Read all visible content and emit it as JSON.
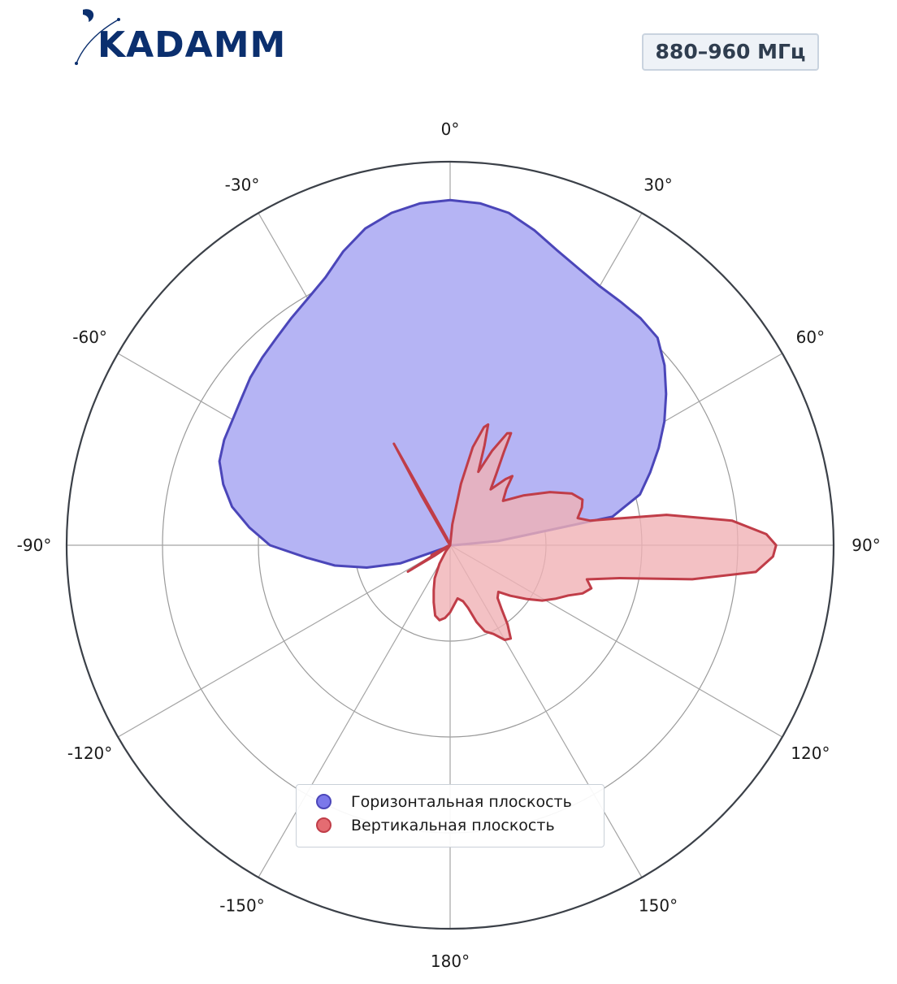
{
  "logo": {
    "text": "KADAMM",
    "color": "#0b2f6e"
  },
  "badge": {
    "text": "880–960 МГц"
  },
  "chart_data": {
    "type": "polar",
    "angular_direction": "clockwise",
    "zero_location": "top",
    "radial_range": [
      0,
      4
    ],
    "radial_gridlines": [
      1,
      2,
      3,
      4
    ],
    "grid": true,
    "angle_tick_labels": [
      {
        "angle": 0,
        "label": "0°"
      },
      {
        "angle": 30,
        "label": "30°"
      },
      {
        "angle": 60,
        "label": "60°"
      },
      {
        "angle": 90,
        "label": "90°"
      },
      {
        "angle": 120,
        "label": "120°"
      },
      {
        "angle": 150,
        "label": "150°"
      },
      {
        "angle": 180,
        "label": "180°"
      },
      {
        "angle": -150,
        "label": "-150°"
      },
      {
        "angle": -120,
        "label": "-120°"
      },
      {
        "angle": -90,
        "label": "-90°"
      },
      {
        "angle": -60,
        "label": "-60°"
      },
      {
        "angle": -30,
        "label": "-30°"
      }
    ],
    "legend_placement": "bottom-center",
    "series": [
      {
        "name": "Горизонтальная плоскость",
        "color": "#5a55d8",
        "line_color": "#4b46b9",
        "fill_color": "#b5b4f4",
        "marker_color": "#7b78ea",
        "points": [
          [
            -180,
            0.0
          ],
          [
            -150,
            0.0
          ],
          [
            -120,
            0.04
          ],
          [
            -110,
            0.55
          ],
          [
            -105,
            0.9
          ],
          [
            -100,
            1.22
          ],
          [
            -95,
            1.5
          ],
          [
            -90,
            1.88
          ],
          [
            -85,
            2.1
          ],
          [
            -80,
            2.31
          ],
          [
            -75,
            2.45
          ],
          [
            -70,
            2.56
          ],
          [
            -65,
            2.6
          ],
          [
            -60,
            2.62
          ],
          [
            -55,
            2.66
          ],
          [
            -50,
            2.72
          ],
          [
            -45,
            2.77
          ],
          [
            -40,
            2.82
          ],
          [
            -35,
            2.89
          ],
          [
            -30,
            2.97
          ],
          [
            -25,
            3.08
          ],
          [
            -20,
            3.26
          ],
          [
            -15,
            3.42
          ],
          [
            -10,
            3.52
          ],
          [
            -5,
            3.58
          ],
          [
            0,
            3.6
          ],
          [
            5,
            3.58
          ],
          [
            10,
            3.52
          ],
          [
            15,
            3.4
          ],
          [
            20,
            3.27
          ],
          [
            25,
            3.18
          ],
          [
            30,
            3.12
          ],
          [
            35,
            3.1
          ],
          [
            40,
            3.09
          ],
          [
            45,
            3.06
          ],
          [
            50,
            2.92
          ],
          [
            55,
            2.75
          ],
          [
            60,
            2.58
          ],
          [
            65,
            2.4
          ],
          [
            70,
            2.22
          ],
          [
            75,
            2.05
          ],
          [
            80,
            1.72
          ],
          [
            85,
            0.5
          ],
          [
            90,
            0.04
          ],
          [
            120,
            0.0
          ],
          [
            180,
            0.0
          ]
        ]
      },
      {
        "name": "Вертикальная плоскость",
        "color": "#c43c47",
        "line_color": "#c03d48",
        "fill_color": "#f0b1b5",
        "marker_color": "#e46c72",
        "points": [
          [
            -180,
            0.0
          ],
          [
            -140,
            0.0
          ],
          [
            -128,
            0.02
          ],
          [
            -124,
            0.2
          ],
          [
            -122,
            0.52
          ],
          [
            -120,
            0.12
          ],
          [
            -118,
            0.22
          ],
          [
            -116,
            0.1
          ],
          [
            -110,
            0.03
          ],
          [
            -90,
            0.0
          ],
          [
            -40,
            0.0
          ],
          [
            -33,
            0.05
          ],
          [
            -30,
            0.6
          ],
          [
            -29,
            1.21
          ],
          [
            -28,
            0.35
          ],
          [
            -24,
            0.08
          ],
          [
            -15,
            0.0
          ],
          [
            0,
            0.0
          ],
          [
            6,
            0.22
          ],
          [
            10,
            0.65
          ],
          [
            13,
            1.05
          ],
          [
            16,
            1.28
          ],
          [
            17.5,
            1.32
          ],
          [
            19,
            1.1
          ],
          [
            21,
            0.82
          ],
          [
            24,
            1.08
          ],
          [
            27,
            1.31
          ],
          [
            28.5,
            1.33
          ],
          [
            30,
            1.12
          ],
          [
            33,
            0.88
          ],
          [
            36,
            0.72
          ],
          [
            40,
            0.9
          ],
          [
            42,
            0.97
          ],
          [
            45,
            0.83
          ],
          [
            50,
            0.72
          ],
          [
            56,
            0.93
          ],
          [
            62,
            1.18
          ],
          [
            67,
            1.38
          ],
          [
            71,
            1.46
          ],
          [
            74,
            1.43
          ],
          [
            78,
            1.36
          ],
          [
            80,
            1.48
          ],
          [
            82,
            2.28
          ],
          [
            85,
            2.95
          ],
          [
            88,
            3.3
          ],
          [
            90,
            3.4
          ],
          [
            92,
            3.37
          ],
          [
            95,
            3.2
          ],
          [
            98,
            2.55
          ],
          [
            101,
            1.8
          ],
          [
            104,
            1.47
          ],
          [
            107,
            1.54
          ],
          [
            110,
            1.47
          ],
          [
            113,
            1.34
          ],
          [
            117,
            1.23
          ],
          [
            121,
            1.12
          ],
          [
            125,
            0.98
          ],
          [
            130,
            0.82
          ],
          [
            134,
            0.7
          ],
          [
            138,
            0.74
          ],
          [
            141,
            0.85
          ],
          [
            144,
            1.02
          ],
          [
            147,
            1.16
          ],
          [
            150,
            1.14
          ],
          [
            154,
            1.03
          ],
          [
            158,
            0.97
          ],
          [
            161,
            0.85
          ],
          [
            164,
            0.68
          ],
          [
            167,
            0.6
          ],
          [
            172,
            0.56
          ],
          [
            176,
            0.62
          ],
          [
            180,
            0.7
          ],
          [
            -176,
            0.76
          ],
          [
            -172,
            0.79
          ],
          [
            -168,
            0.75
          ],
          [
            -164,
            0.62
          ],
          [
            -160,
            0.5
          ],
          [
            -155,
            0.38
          ],
          [
            -150,
            0.22
          ],
          [
            -145,
            0.08
          ],
          [
            -140,
            0.0
          ]
        ]
      }
    ]
  },
  "legend": {
    "items": [
      {
        "label": "Горизонтальная плоскость"
      },
      {
        "label": "Вертикальная плоскость"
      }
    ]
  }
}
